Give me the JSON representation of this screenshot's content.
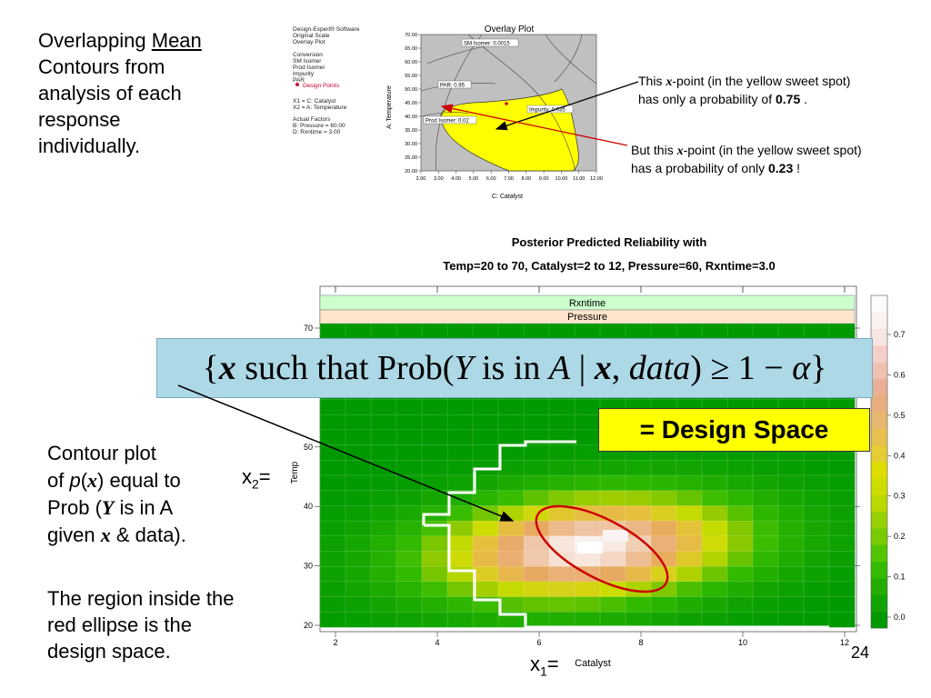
{
  "left_heading": {
    "line1_prefix": "Overlapping ",
    "line1_underlined": "Mean",
    "line2": "Contours from",
    "line3": "analysis of each",
    "line4": "response",
    "line5": "individually."
  },
  "overlay_plot": {
    "title": "Overlay Plot",
    "legend_lines": [
      "Design-Expert® Software",
      "Original Scale",
      "Overlay Plot",
      "",
      "Conversion",
      "SM Isomer",
      "Prod Isomer",
      "Impurity",
      "PAR"
    ],
    "design_points_label": "Design Points",
    "factor_lines": [
      "X1 = C: Catalyst",
      "X2 = A: Temperature",
      "",
      "Actual Factors",
      "B: Pressure = 60.00",
      "D: Rxntime = 3.00"
    ],
    "y_axis_label": "A: Temperature",
    "x_axis_label": "C: Catalyst",
    "y_ticks": [
      "70.00",
      "65.00",
      "60.00",
      "55.00",
      "50.00",
      "45.00",
      "40.00",
      "35.00",
      "30.00",
      "25.00",
      "20.00"
    ],
    "x_ticks": [
      "2.00",
      "3.00",
      "4.00",
      "5.00",
      "6.00",
      "7.00",
      "8.00",
      "9.00",
      "10.00",
      "11.00",
      "12.00"
    ],
    "contour_labels": [
      "SM Isomer: 0.0015",
      "PAR: 0.95",
      "Impurity: 0.035",
      "Prod Isomer: 0.02"
    ],
    "colors": {
      "background": "#c0c0c0",
      "sweet_spot": "#ffff00",
      "point": "#cc0033"
    }
  },
  "annotations": {
    "note1": {
      "prefix": "This ",
      "x": "x",
      "middle": "-point (in the yellow sweet spot)",
      "line2_prefix": "has only a probability of ",
      "value": "0.75",
      "suffix": " ."
    },
    "note2": {
      "prefix": "But this ",
      "x": "x",
      "middle": "-point (in the yellow sweet spot)",
      "line2_prefix": "has a probability of only ",
      "value": "0.23",
      "suffix": " !"
    }
  },
  "heatmap": {
    "title_line1": "Posterior Predicted Reliability with",
    "title_line2": "Temp=20 to 70, Catalyst=2 to 12, Pressure=60, Rxntime=3.0",
    "strip1": "Rxntime",
    "strip2": "Pressure",
    "y_axis_label": "Temp",
    "x_axis_label": "Catalyst",
    "y_ticks": [
      "70",
      "50",
      "40",
      "30",
      "20"
    ],
    "x_ticks": [
      "2",
      "4",
      "6",
      "8",
      "10",
      "12"
    ],
    "colorbar_ticks": [
      "0.7",
      "0.6",
      "0.5",
      "0.4",
      "0.3",
      "0.2",
      "0.1",
      "0.0"
    ],
    "colors": {
      "strip1": "#ccffcc",
      "strip2": "#ffe5cc",
      "ellipse": "#cc0000",
      "boundary": "#ffffff"
    }
  },
  "chart_data": {
    "type": "heatmap",
    "x_range": [
      2,
      12
    ],
    "y_range": [
      20,
      70
    ],
    "color_range": [
      0.0,
      0.75
    ],
    "peak_value": 0.75,
    "peak_at": {
      "Catalyst": 7,
      "Temp": 33
    }
  },
  "formula": {
    "open": "{",
    "x1": "x",
    "text1": " such that Prob(",
    "Y": "Y",
    "text2": " is in ",
    "A": "A",
    "bar": " | ",
    "x2": "x",
    "comma": ", ",
    "data": "data",
    "text3": ") ≥ 1 − ",
    "alpha": "α",
    "close": "}"
  },
  "design_space_label": "= Design Space",
  "contour_text": {
    "line1": "Contour plot",
    "line2_prefix": "of ",
    "p": "p",
    "paren_open": "(",
    "x": "x",
    "line2_suffix": ") equal to",
    "line3_prefix": "Prob (",
    "Y": "Y",
    "line3_suffix": " is in A",
    "line4_prefix": "given ",
    "x2": "x",
    "line4_suffix": " & data)."
  },
  "region_text": {
    "line1": "The region inside the",
    "line2": "red ellipse is the",
    "line3": "design space."
  },
  "x2_label": "x",
  "x2_sub": "2",
  "x2_eq": "=",
  "x1_label": "x",
  "x1_sub": "1",
  "x1_eq": "=",
  "page_number": "24"
}
